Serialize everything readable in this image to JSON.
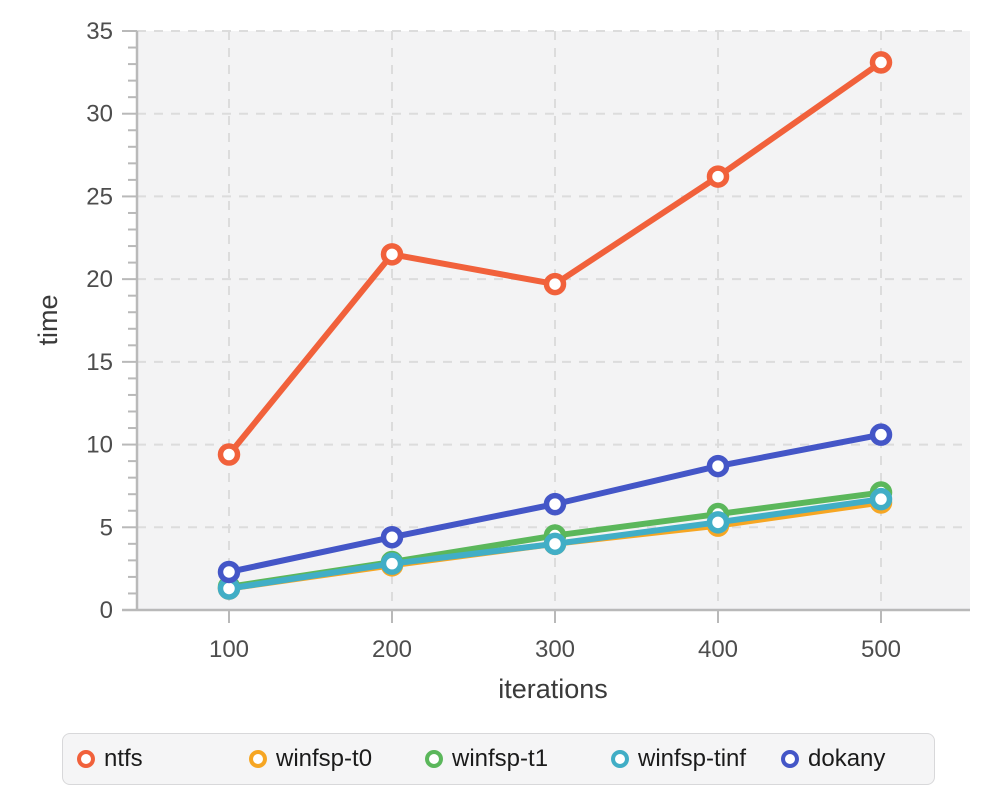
{
  "chart_data": {
    "type": "line",
    "title": "",
    "xlabel": "iterations",
    "ylabel": "time",
    "x": [
      100,
      200,
      300,
      400,
      500
    ],
    "xlim": [
      44,
      555
    ],
    "ylim": [
      0,
      35
    ],
    "yticks": [
      0,
      5,
      10,
      15,
      20,
      25,
      30,
      35
    ],
    "xticks": [
      100,
      200,
      300,
      400,
      500
    ],
    "y_minor_tick_step": 1,
    "grid": "dashed on light-gray panel",
    "legend_position": "bottom",
    "marker": "open-circle",
    "series": [
      {
        "name": "ntfs",
        "color": "#F1613B",
        "values": [
          9.4,
          21.5,
          19.7,
          26.2,
          33.1
        ]
      },
      {
        "name": "winfsp-t0",
        "color": "#F6A623",
        "values": [
          1.3,
          2.7,
          4.0,
          5.1,
          6.5
        ]
      },
      {
        "name": "winfsp-t1",
        "color": "#5BB75B",
        "values": [
          1.4,
          2.9,
          4.5,
          5.8,
          7.1
        ]
      },
      {
        "name": "winfsp-tinf",
        "color": "#41AEC6",
        "values": [
          1.3,
          2.8,
          4.0,
          5.3,
          6.7
        ]
      },
      {
        "name": "dokany",
        "color": "#4456C7",
        "values": [
          2.3,
          4.4,
          6.4,
          8.7,
          10.6
        ]
      }
    ],
    "colors": {
      "panel_background": "#f3f3f4",
      "gridline": "#dcdcdc",
      "axis_line": "#b9b9b9",
      "tick_label": "#4d4d4d",
      "axis_title": "#3a3a3a",
      "legend_background": "#f5f5f6",
      "legend_border": "#d8d8da",
      "legend_text": "#1b1b1b"
    }
  }
}
